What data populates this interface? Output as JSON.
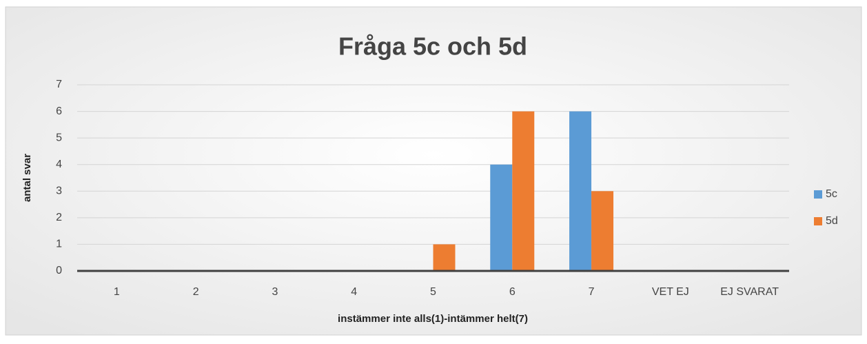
{
  "chart_data": {
    "type": "bar",
    "title": "Fråga 5c och 5d",
    "x_label": "instämmer inte alls(1)-intämmer helt(7)",
    "y_label": "antal svar",
    "categories": [
      "1",
      "2",
      "3",
      "4",
      "5",
      "6",
      "7",
      "VET EJ",
      "EJ SVARAT"
    ],
    "series": [
      {
        "name": "5c",
        "color": "#5b9bd5",
        "values": [
          0,
          0,
          0,
          0,
          0,
          4,
          6,
          0,
          0
        ]
      },
      {
        "name": "5d",
        "color": "#ed7d31",
        "values": [
          0,
          0,
          0,
          0,
          1,
          6,
          3,
          0,
          0
        ]
      }
    ],
    "ylim": [
      0,
      7
    ],
    "yticks": [
      0,
      1,
      2,
      3,
      4,
      5,
      6,
      7
    ],
    "grid": true,
    "legend": "right"
  }
}
